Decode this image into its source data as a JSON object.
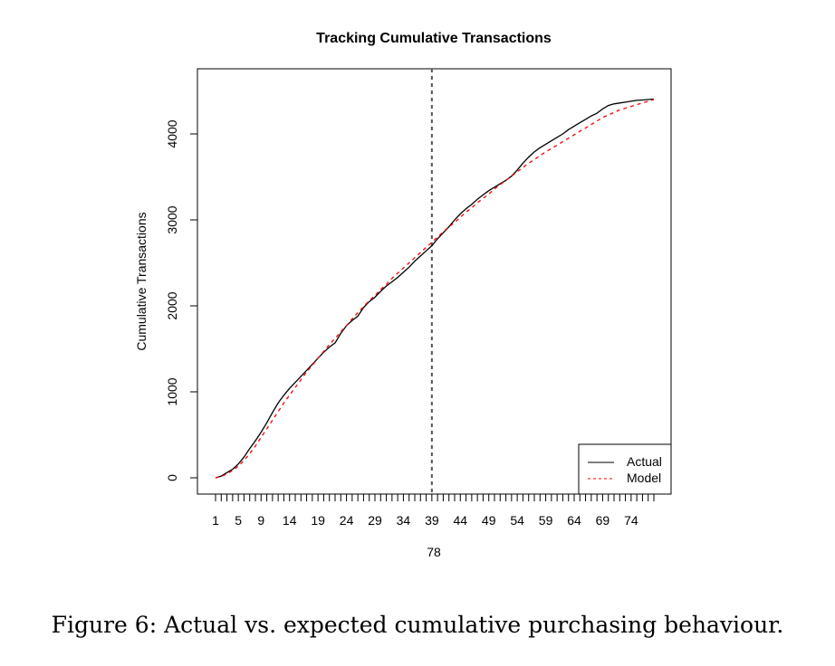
{
  "chart_data": {
    "type": "line",
    "title": "Tracking Cumulative Transactions",
    "xlabel": "78",
    "ylabel": "Cumulative Transactions",
    "xlim": [
      1,
      78
    ],
    "ylim": [
      0,
      4500
    ],
    "y_ticks": [
      0,
      1000,
      2000,
      3000,
      4000
    ],
    "x_tick_labels": [
      1,
      5,
      9,
      14,
      19,
      24,
      29,
      34,
      39,
      44,
      49,
      54,
      59,
      64,
      69,
      74
    ],
    "vline_x": 39,
    "legend_position": "bottom-right",
    "grid": false,
    "x": [
      1,
      2,
      3,
      4,
      5,
      6,
      7,
      8,
      9,
      10,
      11,
      12,
      13,
      14,
      15,
      16,
      17,
      18,
      19,
      20,
      21,
      22,
      23,
      24,
      25,
      26,
      27,
      28,
      29,
      30,
      31,
      32,
      33,
      34,
      35,
      36,
      37,
      38,
      39,
      40,
      41,
      42,
      43,
      44,
      45,
      46,
      47,
      48,
      49,
      50,
      51,
      52,
      53,
      54,
      55,
      56,
      57,
      58,
      59,
      60,
      61,
      62,
      63,
      64,
      65,
      66,
      67,
      68,
      69,
      70,
      71,
      72,
      73,
      74,
      75,
      76,
      77,
      78
    ],
    "series": [
      {
        "name": "Actual",
        "color": "#000000",
        "dash": "solid",
        "values": [
          0,
          20,
          60,
          100,
          160,
          240,
          340,
          430,
          530,
          640,
          760,
          870,
          960,
          1040,
          1110,
          1180,
          1250,
          1320,
          1390,
          1460,
          1520,
          1570,
          1680,
          1770,
          1830,
          1880,
          1980,
          2050,
          2100,
          2170,
          2230,
          2280,
          2330,
          2390,
          2450,
          2520,
          2580,
          2640,
          2700,
          2780,
          2850,
          2920,
          3000,
          3070,
          3130,
          3180,
          3240,
          3290,
          3340,
          3380,
          3420,
          3460,
          3510,
          3580,
          3660,
          3730,
          3790,
          3840,
          3880,
          3920,
          3960,
          4000,
          4050,
          4090,
          4130,
          4170,
          4210,
          4240,
          4290,
          4330,
          4350,
          4360,
          4370,
          4380,
          4390,
          4395,
          4400,
          4405
        ]
      },
      {
        "name": "Model",
        "color": "#ff0000",
        "dash": "dashed",
        "values": [
          0,
          15,
          45,
          85,
          135,
          200,
          280,
          370,
          470,
          570,
          670,
          770,
          870,
          960,
          1050,
          1140,
          1230,
          1310,
          1390,
          1470,
          1550,
          1620,
          1700,
          1770,
          1850,
          1920,
          1990,
          2060,
          2120,
          2190,
          2250,
          2320,
          2380,
          2440,
          2500,
          2560,
          2620,
          2680,
          2740,
          2800,
          2860,
          2920,
          2970,
          3030,
          3090,
          3140,
          3200,
          3250,
          3300,
          3360,
          3410,
          3460,
          3510,
          3560,
          3610,
          3660,
          3700,
          3750,
          3790,
          3830,
          3870,
          3910,
          3950,
          3990,
          4030,
          4070,
          4110,
          4150,
          4190,
          4220,
          4250,
          4280,
          4300,
          4320,
          4340,
          4360,
          4380,
          4400
        ]
      }
    ]
  },
  "caption": "Figure 6: Actual vs. expected cumulative purchasing behaviour."
}
